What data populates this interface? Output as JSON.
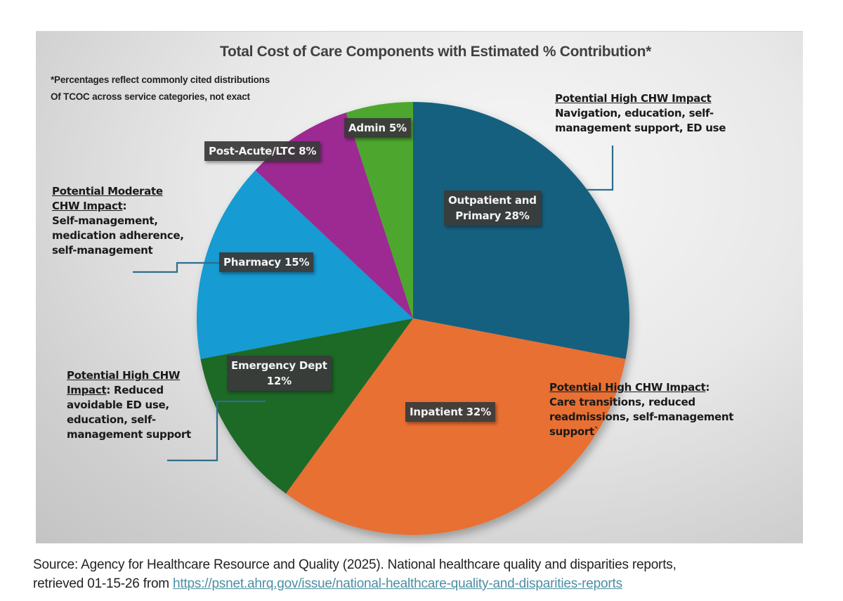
{
  "chart_data": {
    "type": "pie",
    "title": "Total Cost of Care Components with Estimated % Contribution*",
    "footnote_lines": [
      "*Percentages reflect commonly cited distributions",
      "Of TCOC across service categories, not exact"
    ],
    "start_angle_deg": 0,
    "direction": "clockwise",
    "slices": [
      {
        "name": "Outpatient and Primary",
        "label_lines": [
          "Outpatient and",
          "Primary 28%"
        ],
        "value": 28,
        "color": "#15617f"
      },
      {
        "name": "Inpatient",
        "label_lines": [
          "Inpatient 32%"
        ],
        "value": 32,
        "color": "#e87032"
      },
      {
        "name": "Emergency Dept",
        "label_lines": [
          "Emergency Dept",
          "12%"
        ],
        "value": 12,
        "color": "#1c6b25"
      },
      {
        "name": "Pharmacy",
        "label_lines": [
          "Pharmacy 15%"
        ],
        "value": 15,
        "color": "#129bd3"
      },
      {
        "name": "Post-Acute/LTC",
        "label_lines": [
          "Post-Acute/LTC 8%"
        ],
        "value": 8,
        "color": "#9c2a92"
      },
      {
        "name": "Admin",
        "label_lines": [
          "Admin 5%"
        ],
        "value": 5,
        "color": "#4ea72e"
      }
    ],
    "annotations": [
      {
        "target": "Outpatient and Primary",
        "heading": "Potential High CHW Impact",
        "heading_suffix": "",
        "lines": [
          "Navigation, education, self-",
          "management support,  ED use"
        ]
      },
      {
        "target": "Pharmacy",
        "heading_lines": [
          "Potential Moderate",
          "CHW Impact"
        ],
        "heading_suffix": ":",
        "lines": [
          "Self-management,",
          "medication adherence,",
          "self-management"
        ]
      },
      {
        "target": "Emergency Dept",
        "heading_lines": [
          "Potential High CHW",
          "Impact"
        ],
        "heading_suffix": ": Reduced",
        "lines": [
          "avoidable ED use,",
          "education, self-",
          "management support"
        ]
      },
      {
        "target": "Inpatient",
        "heading": "Potential High CHW Impact",
        "heading_suffix": ":",
        "lines": [
          "Care transitions, reduced",
          "readmissions, self-management",
          "support`"
        ]
      }
    ],
    "leader_line_color": "#2e6e8e"
  },
  "source": {
    "prefix": "Source: Agency for Healthcare Resource and Quality (2025). National healthcare quality and disparities reports,",
    "line2_prefix": "retrieved 01-15-26 from ",
    "link_text": "https://psnet.ahrq.gov/issue/national-healthcare-quality-and-disparities-reports"
  }
}
